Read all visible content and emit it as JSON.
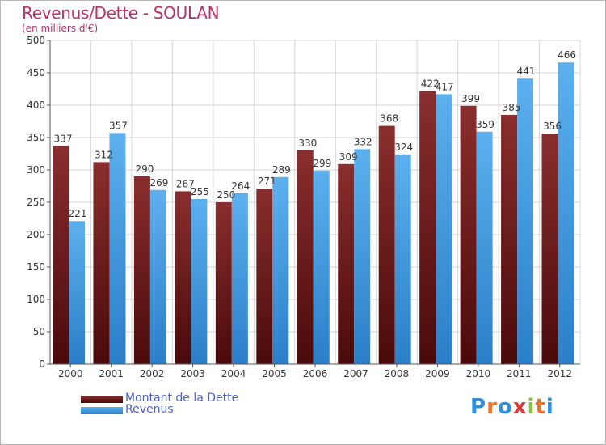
{
  "title": "Revenus/Dette - SOULAN",
  "subtitle": "(en milliers d'€)",
  "logo_text": "Proxiti",
  "colors": {
    "dette": "#6d1e1e",
    "revenus": "#3d9ae0",
    "title": "#b8306a",
    "legend_text": "#4a5fd0"
  },
  "chart_data": {
    "type": "bar",
    "categories": [
      "2000",
      "2001",
      "2002",
      "2003",
      "2004",
      "2005",
      "2006",
      "2007",
      "2008",
      "2009",
      "2010",
      "2011",
      "2012"
    ],
    "series": [
      {
        "name": "Montant de la Dette",
        "values": [
          337,
          312,
          290,
          267,
          250,
          271,
          330,
          309,
          368,
          422,
          399,
          385,
          356
        ]
      },
      {
        "name": "Revenus",
        "values": [
          221,
          357,
          269,
          255,
          264,
          289,
          299,
          332,
          324,
          417,
          359,
          441,
          466
        ]
      }
    ],
    "ylim": [
      0,
      500
    ],
    "yticks": [
      0,
      50,
      100,
      150,
      200,
      250,
      300,
      350,
      400,
      450,
      500
    ],
    "grid": true,
    "legend": "bottom-left"
  }
}
